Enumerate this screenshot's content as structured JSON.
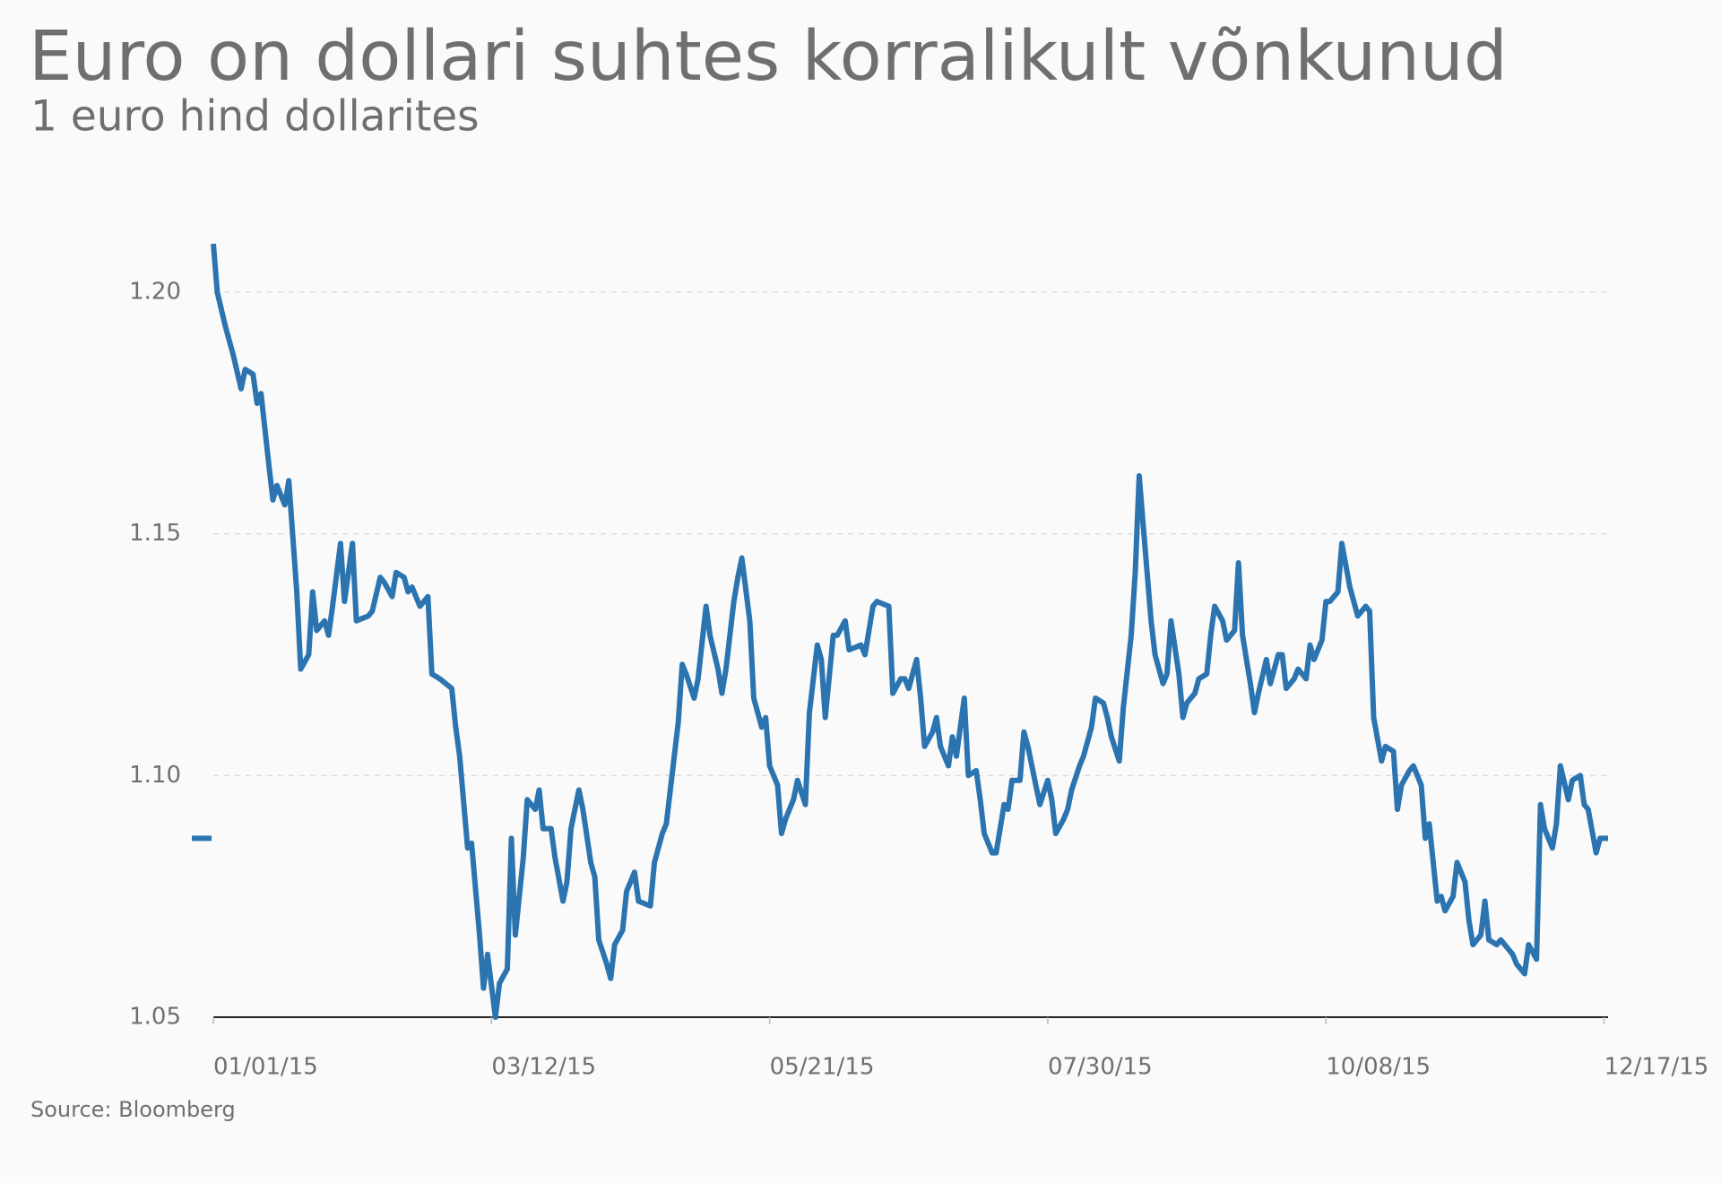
{
  "chart_data": {
    "type": "line",
    "title": "Euro on dollari suhtes korralikult võnkunud",
    "subtitle": "1 euro hind dollarites",
    "source": "Source: Bloomberg",
    "x": [
      "01/01/15",
      "01/02/15",
      "01/04/15",
      "01/06/15",
      "01/08/15",
      "01/09/15",
      "01/11/15",
      "01/12/15",
      "01/13/15",
      "01/15/15",
      "01/16/15",
      "01/17/15",
      "01/19/15",
      "01/20/15",
      "01/22/15",
      "01/23/15",
      "01/25/15",
      "01/26/15",
      "01/27/15",
      "01/29/15",
      "01/30/15",
      "01/31/15",
      "02/02/15",
      "02/03/15",
      "02/05/15",
      "02/06/15",
      "02/09/15",
      "02/10/15",
      "02/12/15",
      "02/13/15",
      "02/15/15",
      "02/16/15",
      "02/18/15",
      "02/19/15",
      "02/20/15",
      "02/22/15",
      "02/23/15",
      "02/24/15",
      "02/25/15",
      "02/27/15",
      "03/02/15",
      "03/03/15",
      "03/04/15",
      "03/06/15",
      "03/07/15",
      "03/09/15",
      "03/10/15",
      "03/11/15",
      "03/13/15",
      "03/14/15",
      "03/16/15",
      "03/17/15",
      "03/18/15",
      "03/20/15",
      "03/21/15",
      "03/23/15",
      "03/24/15",
      "03/25/15",
      "03/27/15",
      "03/28/15",
      "03/30/15",
      "03/31/15",
      "04/01/15",
      "04/03/15",
      "04/04/15",
      "04/06/15",
      "04/07/15",
      "04/08/15",
      "04/10/15",
      "04/11/15",
      "04/12/15",
      "04/14/15",
      "04/15/15",
      "04/17/15",
      "04/18/15",
      "04/21/15",
      "04/22/15",
      "04/24/15",
      "04/25/15",
      "04/26/15",
      "04/28/15",
      "04/29/15",
      "04/30/15",
      "05/02/15",
      "05/03/15",
      "05/05/15",
      "05/06/15",
      "05/08/15",
      "05/09/15",
      "05/10/15",
      "05/12/15",
      "05/13/15",
      "05/14/15",
      "05/16/15",
      "05/17/15",
      "05/19/15",
      "05/20/15",
      "05/21/15",
      "05/23/15",
      "05/24/15",
      "05/25/15",
      "05/27/15",
      "05/28/15",
      "05/30/15",
      "05/31/15",
      "06/02/15",
      "06/03/15",
      "06/04/15",
      "06/06/15",
      "06/07/15",
      "06/09/15",
      "06/10/15",
      "06/13/15",
      "06/14/15",
      "06/16/15",
      "06/17/15",
      "06/20/15",
      "06/21/15",
      "06/23/15",
      "06/24/15",
      "06/25/15",
      "06/27/15",
      "06/28/15",
      "06/29/15",
      "07/01/15",
      "07/02/15",
      "07/03/15",
      "07/05/15",
      "07/06/15",
      "07/07/15",
      "07/09/15",
      "07/10/15",
      "07/12/15",
      "07/13/15",
      "07/14/15",
      "07/16/15",
      "07/17/15",
      "07/19/15",
      "07/20/15",
      "07/21/15",
      "07/23/15",
      "07/24/15",
      "07/25/15",
      "07/27/15",
      "07/28/15",
      "07/30/15",
      "07/31/15",
      "08/01/15",
      "08/03/15",
      "08/04/15",
      "08/05/15",
      "08/07/15",
      "08/08/15",
      "08/10/15",
      "08/11/15",
      "08/13/15",
      "08/14/15",
      "08/15/15",
      "08/17/15",
      "08/18/15",
      "08/20/15",
      "08/21/15",
      "08/22/15",
      "08/23/15",
      "08/25/15",
      "08/26/15",
      "08/28/15",
      "08/29/15",
      "08/30/15",
      "09/01/15",
      "09/02/15",
      "09/03/15",
      "09/05/15",
      "09/06/15",
      "09/08/15",
      "09/09/15",
      "09/10/15",
      "09/12/15",
      "09/13/15",
      "09/15/15",
      "09/16/15",
      "09/17/15",
      "09/19/15",
      "09/20/15",
      "09/21/15",
      "09/23/15",
      "09/24/15",
      "09/26/15",
      "09/27/15",
      "09/28/15",
      "09/30/15",
      "10/01/15",
      "10/03/15",
      "10/04/15",
      "10/05/15",
      "10/07/15",
      "10/08/15",
      "10/09/15",
      "10/11/15",
      "10/12/15",
      "10/14/15",
      "10/15/15",
      "10/16/15",
      "10/18/15",
      "10/19/15",
      "10/20/15",
      "10/22/15",
      "10/23/15",
      "10/25/15",
      "10/26/15",
      "10/27/15",
      "10/29/15",
      "10/30/15",
      "11/01/15",
      "11/02/15",
      "11/03/15",
      "11/05/15",
      "11/06/15",
      "11/07/15",
      "11/09/15",
      "11/10/15",
      "11/12/15",
      "11/13/15",
      "11/14/15",
      "11/16/15",
      "11/17/15",
      "11/18/15",
      "11/20/15",
      "11/21/15",
      "11/23/15",
      "11/24/15",
      "11/25/15",
      "11/27/15",
      "11/28/15",
      "11/30/15",
      "12/01/15",
      "12/02/15",
      "12/04/15",
      "12/05/15",
      "12/06/15",
      "12/08/15",
      "12/09/15",
      "12/11/15",
      "12/12/15",
      "12/13/15",
      "12/15/15",
      "12/16/15",
      "12/18/15"
    ],
    "series": [
      {
        "color": "#2b74b0",
        "values": [
          1.21,
          1.2,
          1.193,
          1.187,
          1.18,
          1.184,
          1.183,
          1.177,
          1.179,
          1.164,
          1.157,
          1.16,
          1.156,
          1.161,
          1.138,
          1.122,
          1.125,
          1.138,
          1.13,
          1.132,
          1.129,
          1.135,
          1.148,
          1.136,
          1.148,
          1.132,
          1.133,
          1.134,
          1.141,
          1.14,
          1.137,
          1.142,
          1.141,
          1.138,
          1.139,
          1.135,
          1.136,
          1.137,
          1.121,
          1.12,
          1.118,
          1.11,
          1.104,
          1.085,
          1.086,
          1.067,
          1.056,
          1.063,
          1.05,
          1.057,
          1.06,
          1.087,
          1.067,
          1.083,
          1.095,
          1.093,
          1.097,
          1.089,
          1.089,
          1.083,
          1.074,
          1.078,
          1.089,
          1.097,
          1.093,
          1.082,
          1.079,
          1.066,
          1.061,
          1.058,
          1.065,
          1.068,
          1.076,
          1.08,
          1.074,
          1.073,
          1.082,
          1.088,
          1.09,
          1.097,
          1.111,
          1.123,
          1.121,
          1.116,
          1.12,
          1.135,
          1.129,
          1.122,
          1.117,
          1.122,
          1.136,
          1.141,
          1.145,
          1.132,
          1.116,
          1.11,
          1.112,
          1.102,
          1.098,
          1.088,
          1.091,
          1.095,
          1.099,
          1.094,
          1.113,
          1.127,
          1.124,
          1.112,
          1.129,
          1.129,
          1.132,
          1.126,
          1.127,
          1.125,
          1.135,
          1.136,
          1.135,
          1.117,
          1.12,
          1.12,
          1.118,
          1.124,
          1.116,
          1.106,
          1.109,
          1.112,
          1.106,
          1.102,
          1.108,
          1.104,
          1.116,
          1.1,
          1.101,
          1.095,
          1.088,
          1.084,
          1.084,
          1.094,
          1.093,
          1.099,
          1.099,
          1.109,
          1.106,
          1.098,
          1.094,
          1.099,
          1.095,
          1.088,
          1.091,
          1.093,
          1.097,
          1.102,
          1.104,
          1.11,
          1.116,
          1.115,
          1.112,
          1.108,
          1.103,
          1.114,
          1.129,
          1.142,
          1.162,
          1.152,
          1.132,
          1.125,
          1.119,
          1.121,
          1.132,
          1.121,
          1.112,
          1.115,
          1.117,
          1.12,
          1.121,
          1.129,
          1.135,
          1.132,
          1.128,
          1.13,
          1.144,
          1.129,
          1.119,
          1.113,
          1.117,
          1.124,
          1.119,
          1.125,
          1.125,
          1.118,
          1.12,
          1.122,
          1.12,
          1.127,
          1.124,
          1.128,
          1.136,
          1.136,
          1.138,
          1.148,
          1.139,
          1.136,
          1.133,
          1.135,
          1.134,
          1.112,
          1.103,
          1.106,
          1.105,
          1.093,
          1.098,
          1.101,
          1.102,
          1.098,
          1.087,
          1.09,
          1.074,
          1.075,
          1.072,
          1.075,
          1.082,
          1.078,
          1.07,
          1.065,
          1.067,
          1.074,
          1.066,
          1.065,
          1.066,
          1.064,
          1.063,
          1.061,
          1.059,
          1.065,
          1.062,
          1.094,
          1.089,
          1.085,
          1.09,
          1.102,
          1.095,
          1.099,
          1.1,
          1.094,
          1.093,
          1.084,
          1.087,
          1.087
        ]
      }
    ],
    "xlim": [
      "01/01/15",
      "12/18/15"
    ],
    "xticks": [
      "01/01/15",
      "03/12/15",
      "05/21/15",
      "07/30/15",
      "10/08/15",
      "12/17/15"
    ],
    "ylim": [
      1.05,
      1.21
    ],
    "yticks": [
      1.05,
      {
        "value": 1.1,
        "label": "1.10"
      },
      1.15,
      {
        "value": 1.2,
        "label": "1.20"
      }
    ],
    "grid": true
  }
}
